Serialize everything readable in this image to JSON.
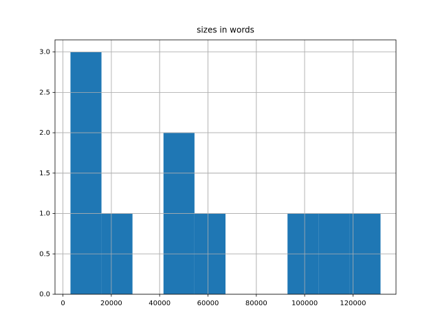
{
  "chart_data": {
    "type": "histogram",
    "title": "sizes in words",
    "bins": [
      3100,
      15930,
      28760,
      41590,
      54420,
      67250,
      80080,
      92910,
      105740,
      118570,
      131400
    ],
    "counts": [
      3,
      1,
      0,
      2,
      1,
      0,
      0,
      1,
      1,
      1
    ],
    "color": "#1f77b4",
    "xlim": [
      -3300,
      137800
    ],
    "xticks": [
      0,
      20000,
      40000,
      60000,
      80000,
      100000,
      120000
    ],
    "ylim": [
      0,
      3.15
    ],
    "yticks": [
      {
        "value": 0,
        "label": "0.0"
      },
      {
        "value": 0.5,
        "label": "0.5"
      },
      {
        "value": 1,
        "label": "1.0"
      },
      {
        "value": 1.5,
        "label": "1.5"
      },
      {
        "value": 2,
        "label": "2.0"
      },
      {
        "value": 2.5,
        "label": "2.5"
      },
      {
        "value": 3,
        "label": "3.0"
      }
    ],
    "grid": true
  }
}
